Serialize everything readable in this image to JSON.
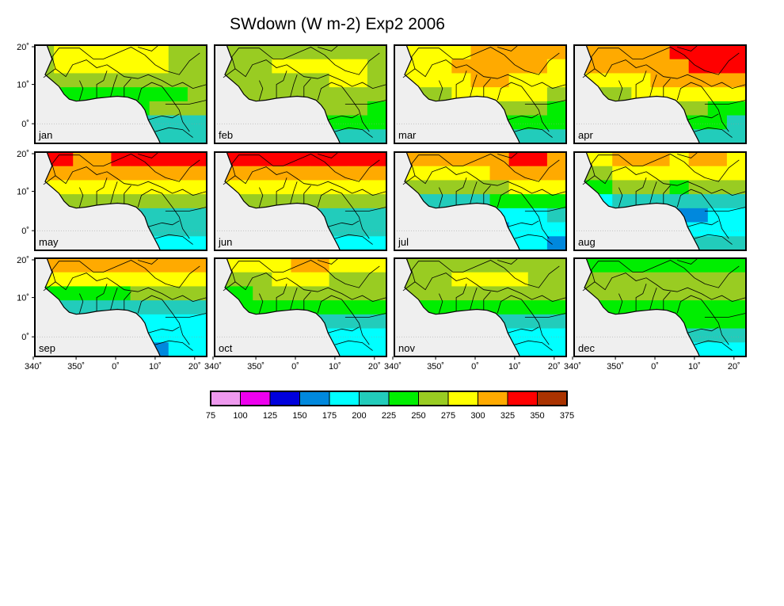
{
  "figure": {
    "title": "SWdown (W m-2) Exp2 2006"
  },
  "panels": [
    {
      "month": "jan",
      "color_levels": [
        [
          250,
          275,
          275,
          275,
          275,
          275,
          275,
          250,
          250
        ],
        [
          250,
          275,
          275,
          275,
          275,
          275,
          275,
          250,
          250
        ],
        [
          250,
          250,
          250,
          250,
          250,
          250,
          250,
          250,
          250
        ],
        [
          225,
          225,
          225,
          225,
          225,
          225,
          225,
          225,
          250
        ],
        [
          225,
          225,
          225,
          200,
          225,
          225,
          250,
          250,
          250
        ],
        [
          200,
          200,
          200,
          200,
          200,
          200,
          200,
          200,
          200
        ],
        [
          200,
          200,
          200,
          200,
          200,
          200,
          200,
          200,
          200
        ]
      ]
    },
    {
      "month": "feb",
      "color_levels": [
        [
          250,
          250,
          250,
          250,
          250,
          250,
          250,
          250,
          250
        ],
        [
          250,
          250,
          250,
          275,
          275,
          275,
          275,
          275,
          250
        ],
        [
          250,
          250,
          250,
          250,
          250,
          250,
          275,
          275,
          250
        ],
        [
          250,
          250,
          250,
          250,
          250,
          250,
          250,
          250,
          250
        ],
        [
          225,
          225,
          225,
          225,
          225,
          250,
          250,
          250,
          225
        ],
        [
          225,
          225,
          225,
          225,
          200,
          225,
          225,
          225,
          225
        ],
        [
          200,
          200,
          200,
          200,
          200,
          200,
          200,
          200,
          200
        ]
      ]
    },
    {
      "month": "mar",
      "color_levels": [
        [
          275,
          275,
          275,
          275,
          300,
          300,
          300,
          300,
          300
        ],
        [
          275,
          275,
          275,
          300,
          300,
          300,
          300,
          300,
          275
        ],
        [
          275,
          275,
          275,
          275,
          300,
          300,
          275,
          275,
          275
        ],
        [
          250,
          250,
          250,
          275,
          275,
          275,
          275,
          275,
          250
        ],
        [
          225,
          225,
          250,
          250,
          250,
          250,
          250,
          250,
          225
        ],
        [
          225,
          225,
          225,
          225,
          225,
          225,
          225,
          225,
          225
        ],
        [
          200,
          200,
          200,
          200,
          200,
          200,
          200,
          200,
          200
        ]
      ]
    },
    {
      "month": "apr",
      "color_levels": [
        [
          300,
          300,
          300,
          300,
          300,
          325,
          325,
          325,
          325
        ],
        [
          300,
          300,
          300,
          300,
          300,
          300,
          325,
          325,
          325
        ],
        [
          275,
          275,
          275,
          275,
          300,
          300,
          300,
          300,
          300
        ],
        [
          250,
          250,
          250,
          275,
          275,
          275,
          275,
          275,
          275
        ],
        [
          225,
          225,
          225,
          250,
          250,
          250,
          250,
          225,
          225
        ],
        [
          225,
          225,
          200,
          225,
          200,
          225,
          225,
          225,
          200
        ],
        [
          200,
          200,
          200,
          200,
          200,
          200,
          200,
          200,
          200
        ]
      ]
    },
    {
      "month": "may",
      "color_levels": [
        [
          325,
          325,
          300,
          300,
          325,
          325,
          325,
          325,
          325
        ],
        [
          300,
          300,
          300,
          300,
          300,
          300,
          300,
          300,
          300
        ],
        [
          275,
          275,
          275,
          275,
          275,
          275,
          275,
          275,
          275
        ],
        [
          250,
          250,
          250,
          250,
          250,
          250,
          250,
          250,
          250
        ],
        [
          225,
          225,
          200,
          200,
          200,
          200,
          200,
          200,
          200
        ],
        [
          200,
          200,
          200,
          200,
          200,
          200,
          200,
          200,
          200
        ],
        [
          175,
          175,
          175,
          175,
          175,
          175,
          175,
          175,
          175
        ]
      ]
    },
    {
      "month": "jun",
      "color_levels": [
        [
          325,
          325,
          325,
          325,
          325,
          325,
          325,
          325,
          325
        ],
        [
          300,
          300,
          300,
          300,
          300,
          300,
          300,
          300,
          300
        ],
        [
          275,
          275,
          275,
          275,
          275,
          275,
          275,
          275,
          275
        ],
        [
          250,
          250,
          250,
          250,
          250,
          250,
          250,
          250,
          250
        ],
        [
          225,
          225,
          200,
          200,
          200,
          200,
          200,
          200,
          200
        ],
        [
          200,
          200,
          200,
          200,
          200,
          200,
          200,
          200,
          200
        ],
        [
          175,
          175,
          175,
          175,
          175,
          175,
          175,
          175,
          175
        ]
      ]
    },
    {
      "month": "jul",
      "color_levels": [
        [
          300,
          300,
          300,
          300,
          300,
          300,
          325,
          325,
          300
        ],
        [
          275,
          275,
          275,
          275,
          275,
          300,
          300,
          300,
          300
        ],
        [
          250,
          250,
          250,
          250,
          250,
          250,
          275,
          275,
          275
        ],
        [
          200,
          200,
          200,
          200,
          200,
          225,
          225,
          225,
          225
        ],
        [
          175,
          175,
          175,
          175,
          175,
          175,
          175,
          175,
          200
        ],
        [
          175,
          175,
          175,
          175,
          150,
          150,
          175,
          175,
          175
        ],
        [
          150,
          150,
          150,
          175,
          150,
          150,
          175,
          175,
          150
        ]
      ]
    },
    {
      "month": "aug",
      "color_levels": [
        [
          275,
          275,
          300,
          300,
          300,
          275,
          300,
          300,
          275
        ],
        [
          250,
          250,
          275,
          275,
          275,
          275,
          275,
          275,
          275
        ],
        [
          225,
          225,
          250,
          250,
          250,
          225,
          250,
          250,
          250
        ],
        [
          175,
          175,
          200,
          200,
          200,
          200,
          200,
          200,
          200
        ],
        [
          150,
          150,
          150,
          150,
          125,
          150,
          150,
          175,
          175
        ],
        [
          175,
          175,
          175,
          175,
          175,
          175,
          175,
          175,
          175
        ],
        [
          200,
          200,
          200,
          200,
          200,
          200,
          200,
          200,
          200
        ]
      ]
    },
    {
      "month": "sep",
      "color_levels": [
        [
          300,
          300,
          300,
          300,
          300,
          300,
          300,
          300,
          300
        ],
        [
          275,
          275,
          275,
          275,
          275,
          275,
          275,
          275,
          275
        ],
        [
          225,
          225,
          225,
          225,
          225,
          250,
          250,
          250,
          250
        ],
        [
          200,
          200,
          200,
          200,
          200,
          200,
          200,
          200,
          200
        ],
        [
          175,
          175,
          175,
          175,
          175,
          175,
          175,
          175,
          175
        ],
        [
          175,
          175,
          175,
          175,
          175,
          175,
          175,
          175,
          175
        ],
        [
          175,
          175,
          175,
          175,
          175,
          150,
          150,
          175,
          175
        ]
      ]
    },
    {
      "month": "oct",
      "color_levels": [
        [
          275,
          275,
          275,
          275,
          300,
          300,
          275,
          275,
          275
        ],
        [
          250,
          250,
          250,
          275,
          275,
          275,
          250,
          250,
          250
        ],
        [
          225,
          225,
          250,
          250,
          250,
          250,
          250,
          250,
          250
        ],
        [
          225,
          225,
          225,
          225,
          225,
          225,
          225,
          225,
          225
        ],
        [
          200,
          200,
          200,
          200,
          200,
          200,
          200,
          200,
          200
        ],
        [
          200,
          200,
          200,
          200,
          175,
          175,
          175,
          175,
          175
        ],
        [
          175,
          175,
          175,
          175,
          175,
          175,
          175,
          175,
          175
        ]
      ]
    },
    {
      "month": "nov",
      "color_levels": [
        [
          250,
          250,
          250,
          250,
          250,
          250,
          250,
          250,
          250
        ],
        [
          250,
          250,
          250,
          275,
          275,
          275,
          275,
          250,
          250
        ],
        [
          250,
          250,
          250,
          250,
          250,
          250,
          250,
          250,
          250
        ],
        [
          225,
          225,
          225,
          225,
          225,
          225,
          225,
          225,
          225
        ],
        [
          200,
          200,
          200,
          200,
          200,
          200,
          200,
          200,
          200
        ],
        [
          200,
          200,
          200,
          200,
          175,
          175,
          175,
          175,
          175
        ],
        [
          175,
          175,
          175,
          175,
          175,
          175,
          175,
          175,
          175
        ]
      ]
    },
    {
      "month": "dec",
      "color_levels": [
        [
          225,
          225,
          225,
          225,
          225,
          225,
          225,
          225,
          225
        ],
        [
          250,
          250,
          250,
          250,
          250,
          250,
          250,
          250,
          250
        ],
        [
          250,
          250,
          250,
          250,
          250,
          250,
          250,
          250,
          250
        ],
        [
          225,
          225,
          225,
          225,
          225,
          225,
          225,
          225,
          225
        ],
        [
          225,
          225,
          225,
          225,
          200,
          225,
          225,
          225,
          225
        ],
        [
          200,
          200,
          200,
          200,
          200,
          200,
          200,
          200,
          200
        ],
        [
          175,
          175,
          175,
          175,
          175,
          175,
          175,
          175,
          175
        ]
      ]
    }
  ],
  "axes": {
    "lat_ticks": [
      "20˚",
      "10˚",
      "0˚"
    ],
    "lon_ticks": [
      "340˚",
      "350˚",
      "0˚",
      "10˚",
      "20˚"
    ]
  },
  "colorbar": {
    "labels": [
      "75",
      "100",
      "125",
      "150",
      "175",
      "200",
      "225",
      "250",
      "275",
      "300",
      "325",
      "350",
      "375"
    ],
    "colors": [
      "#ee99ee",
      "#ee00ee",
      "#0000dd",
      "#0088dd",
      "#00ffff",
      "#22ccbb",
      "#00ee00",
      "#99cc22",
      "#ffff00",
      "#ffaa00",
      "#ff0000",
      "#aa3300"
    ]
  },
  "colors": {
    "ocean": "#efefef",
    "coast": "#000000"
  }
}
